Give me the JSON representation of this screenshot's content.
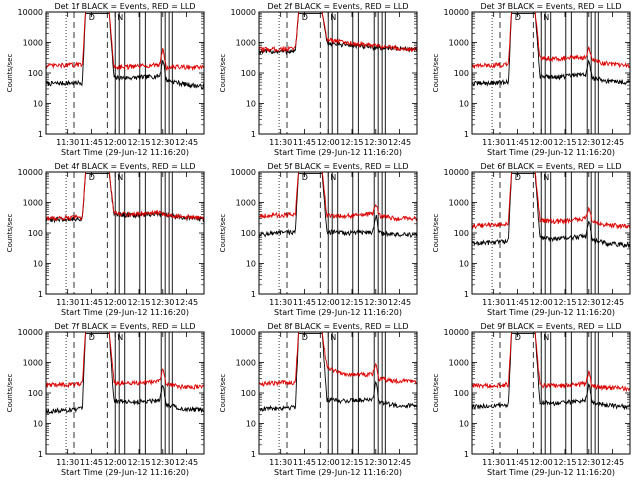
{
  "chart_data": [
    {
      "type": "line",
      "title": "Det 1f BLACK = Events, RED = LLD",
      "xlabel": "Start Time (29-Jun-12 11:16:20)",
      "ylabel": "Counts/sec",
      "yscale": "log",
      "ylim": [
        1,
        10000
      ],
      "xlim": [
        "11:16:20",
        "12:56"
      ],
      "xticks": [
        "11:30",
        "11:45",
        "12:00",
        "12:15",
        "12:30",
        "12:45"
      ],
      "yticks": [
        "1",
        "10",
        "100",
        "1000",
        "10000"
      ],
      "annotations": [
        "D",
        "N"
      ],
      "series": [
        {
          "color": "#000000",
          "knots": [
            [
              0,
              45
            ],
            [
              0.23,
              48
            ],
            [
              0.25,
              9000
            ],
            [
              0.4,
              9000
            ],
            [
              0.43,
              70
            ],
            [
              0.55,
              70
            ],
            [
              0.72,
              80
            ],
            [
              0.74,
              300
            ],
            [
              0.76,
              60
            ],
            [
              0.86,
              45
            ],
            [
              1,
              35
            ]
          ]
        },
        {
          "color": "#dd0000",
          "knots": [
            [
              0,
              170
            ],
            [
              0.23,
              190
            ],
            [
              0.25,
              10000
            ],
            [
              0.4,
              10000
            ],
            [
              0.43,
              160
            ],
            [
              0.55,
              160
            ],
            [
              0.72,
              190
            ],
            [
              0.74,
              700
            ],
            [
              0.76,
              150
            ],
            [
              0.86,
              160
            ],
            [
              1,
              150
            ]
          ]
        }
      ]
    },
    {
      "type": "line",
      "title": "Det 2f BLACK = Events, RED = LLD",
      "xlabel": "Start Time (29-Jun-12 11:16:20)",
      "ylabel": "Counts/sec",
      "yscale": "log",
      "ylim": [
        1,
        10000
      ],
      "xlim": [
        "11:16:20",
        "12:56"
      ],
      "xticks": [
        "11:30",
        "11:45",
        "12:00",
        "12:15",
        "12:30",
        "12:45"
      ],
      "yticks": [
        "1",
        "10",
        "100",
        "1000",
        "10000"
      ],
      "annotations": [
        "D",
        "N"
      ],
      "series": [
        {
          "color": "#000000",
          "knots": [
            [
              0,
              500
            ],
            [
              0.23,
              520
            ],
            [
              0.25,
              9000
            ],
            [
              0.4,
              9000
            ],
            [
              0.43,
              950
            ],
            [
              0.55,
              850
            ],
            [
              0.7,
              700
            ],
            [
              1,
              600
            ]
          ]
        },
        {
          "color": "#dd0000",
          "knots": [
            [
              0,
              600
            ],
            [
              0.23,
              620
            ],
            [
              0.25,
              10000
            ],
            [
              0.4,
              10000
            ],
            [
              0.43,
              1300
            ],
            [
              0.55,
              1000
            ],
            [
              0.7,
              800
            ],
            [
              1,
              580
            ]
          ]
        }
      ]
    },
    {
      "type": "line",
      "title": "Det 3f BLACK = Events, RED = LLD",
      "xlabel": "Start Time (29-Jun-12 11:16:20)",
      "ylabel": "Counts/sec",
      "yscale": "log",
      "ylim": [
        1,
        10000
      ],
      "xlim": [
        "11:16:20",
        "12:56"
      ],
      "xticks": [
        "11:30",
        "11:45",
        "12:00",
        "12:15",
        "12:30",
        "12:45"
      ],
      "yticks": [
        "1",
        "10",
        "100",
        "1000",
        "10000"
      ],
      "annotations": [
        "D",
        "N"
      ],
      "series": [
        {
          "color": "#000000",
          "knots": [
            [
              0,
              45
            ],
            [
              0.23,
              50
            ],
            [
              0.25,
              9000
            ],
            [
              0.4,
              9000
            ],
            [
              0.43,
              80
            ],
            [
              0.55,
              75
            ],
            [
              0.72,
              90
            ],
            [
              0.74,
              250
            ],
            [
              0.76,
              70
            ],
            [
              0.86,
              55
            ],
            [
              1,
              50
            ]
          ]
        },
        {
          "color": "#dd0000",
          "knots": [
            [
              0,
              170
            ],
            [
              0.23,
              190
            ],
            [
              0.25,
              10000
            ],
            [
              0.4,
              10000
            ],
            [
              0.43,
              320
            ],
            [
              0.55,
              300
            ],
            [
              0.72,
              330
            ],
            [
              0.74,
              650
            ],
            [
              0.76,
              260
            ],
            [
              0.86,
              200
            ],
            [
              1,
              170
            ]
          ]
        }
      ]
    },
    {
      "type": "line",
      "title": "Det 4f BLACK = Events, RED = LLD",
      "xlabel": "Start Time (29-Jun-12 11:16:20)",
      "ylabel": "Counts/sec",
      "yscale": "log",
      "ylim": [
        1,
        10000
      ],
      "xlim": [
        "11:16:20",
        "12:56"
      ],
      "xticks": [
        "11:30",
        "11:45",
        "12:00",
        "12:15",
        "12:30",
        "12:45"
      ],
      "yticks": [
        "1",
        "10",
        "100",
        "1000",
        "10000"
      ],
      "annotations": [
        "D",
        "N"
      ],
      "series": [
        {
          "color": "#000000",
          "knots": [
            [
              0,
              270
            ],
            [
              0.23,
              300
            ],
            [
              0.25,
              9000
            ],
            [
              0.4,
              9000
            ],
            [
              0.43,
              420
            ],
            [
              0.55,
              380
            ],
            [
              0.72,
              420
            ],
            [
              0.76,
              380
            ],
            [
              1,
              280
            ]
          ]
        },
        {
          "color": "#dd0000",
          "knots": [
            [
              0,
              300
            ],
            [
              0.23,
              330
            ],
            [
              0.25,
              10000
            ],
            [
              0.4,
              10000
            ],
            [
              0.43,
              450
            ],
            [
              0.55,
              410
            ],
            [
              0.72,
              460
            ],
            [
              0.76,
              400
            ],
            [
              1,
              300
            ]
          ]
        }
      ]
    },
    {
      "type": "line",
      "title": "Det 5f BLACK = Events, RED = LLD",
      "xlabel": "Start Time (29-Jun-12 11:16:20)",
      "ylabel": "Counts/sec",
      "yscale": "log",
      "ylim": [
        1,
        10000
      ],
      "xlim": [
        "11:16:20",
        "12:56"
      ],
      "xticks": [
        "11:30",
        "11:45",
        "12:00",
        "12:15",
        "12:30",
        "12:45"
      ],
      "yticks": [
        "1",
        "10",
        "100",
        "1000",
        "10000"
      ],
      "annotations": [
        "D",
        "N"
      ],
      "series": [
        {
          "color": "#000000",
          "knots": [
            [
              0,
              90
            ],
            [
              0.23,
              110
            ],
            [
              0.25,
              9000
            ],
            [
              0.4,
              9000
            ],
            [
              0.43,
              110
            ],
            [
              0.55,
              100
            ],
            [
              0.72,
              110
            ],
            [
              0.74,
              400
            ],
            [
              0.76,
              100
            ],
            [
              0.86,
              90
            ],
            [
              1,
              85
            ]
          ]
        },
        {
          "color": "#dd0000",
          "knots": [
            [
              0,
              370
            ],
            [
              0.23,
              400
            ],
            [
              0.25,
              10000
            ],
            [
              0.4,
              10000
            ],
            [
              0.43,
              380
            ],
            [
              0.55,
              360
            ],
            [
              0.72,
              420
            ],
            [
              0.74,
              1000
            ],
            [
              0.76,
              380
            ],
            [
              0.86,
              300
            ],
            [
              1,
              300
            ]
          ]
        }
      ]
    },
    {
      "type": "line",
      "title": "Det 6f BLACK = Events, RED = LLD",
      "xlabel": "Start Time (29-Jun-12 11:16:20)",
      "ylabel": "Counts/sec",
      "yscale": "log",
      "ylim": [
        1,
        10000
      ],
      "xlim": [
        "11:16:20",
        "12:56"
      ],
      "xticks": [
        "11:30",
        "11:45",
        "12:00",
        "12:15",
        "12:30",
        "12:45"
      ],
      "yticks": [
        "1",
        "10",
        "100",
        "1000",
        "10000"
      ],
      "annotations": [
        "D",
        "N"
      ],
      "series": [
        {
          "color": "#000000",
          "knots": [
            [
              0,
              45
            ],
            [
              0.23,
              55
            ],
            [
              0.25,
              9000
            ],
            [
              0.4,
              9000
            ],
            [
              0.43,
              70
            ],
            [
              0.55,
              65
            ],
            [
              0.72,
              80
            ],
            [
              0.74,
              300
            ],
            [
              0.76,
              60
            ],
            [
              0.86,
              45
            ],
            [
              1,
              40
            ]
          ]
        },
        {
          "color": "#dd0000",
          "knots": [
            [
              0,
              170
            ],
            [
              0.23,
              200
            ],
            [
              0.25,
              10000
            ],
            [
              0.4,
              10000
            ],
            [
              0.43,
              260
            ],
            [
              0.55,
              240
            ],
            [
              0.72,
              300
            ],
            [
              0.74,
              750
            ],
            [
              0.76,
              220
            ],
            [
              0.86,
              180
            ],
            [
              1,
              170
            ]
          ]
        }
      ]
    },
    {
      "type": "line",
      "title": "Det 7f BLACK = Events, RED = LLD",
      "xlabel": "Start Time (29-Jun-12 11:16:20)",
      "ylabel": "Counts/sec",
      "yscale": "log",
      "ylim": [
        1,
        10000
      ],
      "xlim": [
        "11:16:20",
        "12:56"
      ],
      "xticks": [
        "11:30",
        "11:45",
        "12:00",
        "12:15",
        "12:30",
        "12:45"
      ],
      "yticks": [
        "1",
        "10",
        "100",
        "1000",
        "10000"
      ],
      "annotations": [
        "D",
        "N"
      ],
      "series": [
        {
          "color": "#000000",
          "knots": [
            [
              0,
              25
            ],
            [
              0.23,
              30
            ],
            [
              0.25,
              9000
            ],
            [
              0.4,
              9000
            ],
            [
              0.43,
              55
            ],
            [
              0.55,
              50
            ],
            [
              0.72,
              60
            ],
            [
              0.74,
              200
            ],
            [
              0.76,
              45
            ],
            [
              0.86,
              30
            ],
            [
              1,
              28
            ]
          ]
        },
        {
          "color": "#dd0000",
          "knots": [
            [
              0,
              180
            ],
            [
              0.23,
              200
            ],
            [
              0.25,
              10000
            ],
            [
              0.4,
              10000
            ],
            [
              0.43,
              220
            ],
            [
              0.55,
              210
            ],
            [
              0.72,
              250
            ],
            [
              0.74,
              650
            ],
            [
              0.76,
              200
            ],
            [
              0.86,
              160
            ],
            [
              1,
              160
            ]
          ]
        }
      ]
    },
    {
      "type": "line",
      "title": "Det 8f BLACK = Events, RED = LLD",
      "xlabel": "Start Time (29-Jun-12 11:16:20)",
      "ylabel": "Counts/sec",
      "yscale": "log",
      "ylim": [
        1,
        10000
      ],
      "xlim": [
        "11:16:20",
        "12:56"
      ],
      "xticks": [
        "11:30",
        "11:45",
        "12:00",
        "12:15",
        "12:30",
        "12:45"
      ],
      "yticks": [
        "1",
        "10",
        "100",
        "1000",
        "10000"
      ],
      "annotations": [
        "D",
        "N"
      ],
      "series": [
        {
          "color": "#000000",
          "knots": [
            [
              0,
              30
            ],
            [
              0.23,
              35
            ],
            [
              0.25,
              9000
            ],
            [
              0.4,
              9000
            ],
            [
              0.43,
              60
            ],
            [
              0.55,
              55
            ],
            [
              0.72,
              65
            ],
            [
              0.74,
              250
            ],
            [
              0.76,
              50
            ],
            [
              0.86,
              40
            ],
            [
              1,
              38
            ]
          ]
        },
        {
          "color": "#dd0000",
          "knots": [
            [
              0,
              200
            ],
            [
              0.23,
              230
            ],
            [
              0.25,
              10000
            ],
            [
              0.4,
              10000
            ],
            [
              0.43,
              700
            ],
            [
              0.55,
              400
            ],
            [
              0.72,
              420
            ],
            [
              0.74,
              900
            ],
            [
              0.76,
              300
            ],
            [
              0.86,
              250
            ],
            [
              1,
              250
            ]
          ]
        }
      ]
    },
    {
      "type": "line",
      "title": "Det 9f BLACK = Events, RED = LLD",
      "xlabel": "Start Time (29-Jun-12 11:16:20)",
      "ylabel": "Counts/sec",
      "yscale": "log",
      "ylim": [
        1,
        10000
      ],
      "xlim": [
        "11:16:20",
        "12:56"
      ],
      "xticks": [
        "11:30",
        "11:45",
        "12:00",
        "12:15",
        "12:30",
        "12:45"
      ],
      "yticks": [
        "1",
        "10",
        "100",
        "1000",
        "10000"
      ],
      "annotations": [
        "D",
        "N"
      ],
      "series": [
        {
          "color": "#000000",
          "knots": [
            [
              0,
              35
            ],
            [
              0.23,
              40
            ],
            [
              0.25,
              9000
            ],
            [
              0.4,
              9000
            ],
            [
              0.43,
              50
            ],
            [
              0.55,
              45
            ],
            [
              0.72,
              60
            ],
            [
              0.74,
              200
            ],
            [
              0.76,
              50
            ],
            [
              0.86,
              40
            ],
            [
              1,
              35
            ]
          ]
        },
        {
          "color": "#dd0000",
          "knots": [
            [
              0,
              170
            ],
            [
              0.23,
              190
            ],
            [
              0.25,
              10000
            ],
            [
              0.4,
              10000
            ],
            [
              0.43,
              180
            ],
            [
              0.55,
              170
            ],
            [
              0.72,
              200
            ],
            [
              0.74,
              500
            ],
            [
              0.76,
              170
            ],
            [
              0.86,
              150
            ],
            [
              1,
              140
            ]
          ]
        }
      ]
    }
  ]
}
